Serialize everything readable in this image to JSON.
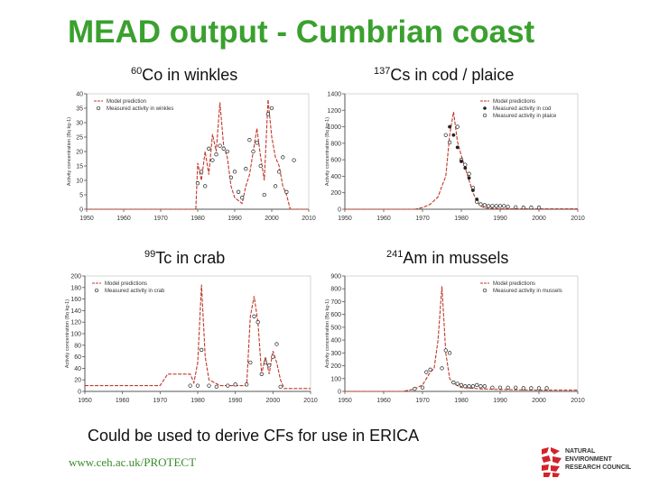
{
  "title": "MEAD output - Cumbrian coast",
  "caption": "Could be used to derive CFs for use in ERICA",
  "footer_url": "www.ceh.ac.uk/PROTECT",
  "logo": {
    "name": "NATURAL ENVIRONMENT RESEARCH COUNCIL",
    "lines": [
      "NATURAL",
      "ENVIRONMENT",
      "RESEARCH COUNCIL"
    ],
    "color": "#d2232a"
  },
  "colors": {
    "title": "#3aa02e",
    "model_line": "#c0392b",
    "axes": "#555555"
  },
  "panels": [
    {
      "id": "co60",
      "isotope_mass": "60",
      "title_rest": "Co in winkles"
    },
    {
      "id": "cs137",
      "isotope_mass": "137",
      "title_rest": "Cs in cod / plaice"
    },
    {
      "id": "tc99",
      "isotope_mass": "99",
      "title_rest": "Tc in crab"
    },
    {
      "id": "am241",
      "isotope_mass": "241",
      "title_rest": "Am in mussels"
    }
  ],
  "chart_data": [
    {
      "id": "co60",
      "type": "line",
      "xlim": [
        1950,
        2010
      ],
      "ylim": [
        0,
        40
      ],
      "xticks": [
        1950,
        1960,
        1970,
        1980,
        1990,
        2000,
        2010
      ],
      "yticks": [
        0,
        5,
        10,
        15,
        20,
        25,
        30,
        35,
        40
      ],
      "ylabel": "Activity concentration (Bq kg-1)",
      "legend": [
        "Model prediction",
        "Measured activity in winkles"
      ],
      "model": [
        [
          1950,
          0
        ],
        [
          1979.5,
          0
        ],
        [
          1980,
          16
        ],
        [
          1981,
          10
        ],
        [
          1982,
          20
        ],
        [
          1983,
          12
        ],
        [
          1984,
          26
        ],
        [
          1985,
          20
        ],
        [
          1986,
          37
        ],
        [
          1987,
          22
        ],
        [
          1988,
          18
        ],
        [
          1989,
          8
        ],
        [
          1990,
          4
        ],
        [
          1991,
          3
        ],
        [
          1992,
          2
        ],
        [
          1993,
          8
        ],
        [
          1994,
          12
        ],
        [
          1995,
          20
        ],
        [
          1996,
          28
        ],
        [
          1997,
          18
        ],
        [
          1998,
          10
        ],
        [
          1999,
          38
        ],
        [
          2000,
          25
        ],
        [
          2001,
          18
        ],
        [
          2002,
          15
        ],
        [
          2003,
          8
        ],
        [
          2004,
          5
        ],
        [
          2005,
          0
        ],
        [
          2010,
          0
        ]
      ],
      "measured": [
        [
          1980,
          9
        ],
        [
          1981,
          13
        ],
        [
          1982,
          8
        ],
        [
          1983,
          21
        ],
        [
          1984,
          17
        ],
        [
          1985,
          19
        ],
        [
          1986,
          22
        ],
        [
          1987,
          21
        ],
        [
          1988,
          20
        ],
        [
          1989,
          11
        ],
        [
          1990,
          13
        ],
        [
          1991,
          6
        ],
        [
          1992,
          4
        ],
        [
          1993,
          14
        ],
        [
          1994,
          24
        ],
        [
          1995,
          20
        ],
        [
          1996,
          23
        ],
        [
          1997,
          15
        ],
        [
          1998,
          5
        ],
        [
          1999,
          33
        ],
        [
          2000,
          35
        ],
        [
          2001,
          8
        ],
        [
          2002,
          13
        ],
        [
          2003,
          18
        ],
        [
          2004,
          6
        ],
        [
          2006,
          17
        ]
      ]
    },
    {
      "id": "cs137",
      "type": "line",
      "xlim": [
        1950,
        2010
      ],
      "ylim": [
        0,
        1400
      ],
      "xticks": [
        1950,
        1960,
        1970,
        1980,
        1990,
        2000,
        2010
      ],
      "yticks": [
        0,
        200,
        400,
        600,
        800,
        1000,
        1200,
        1400
      ],
      "ylabel": "Activity concentration (Bq kg-1)",
      "legend": [
        "Model predictions",
        "Measured activity in cod",
        "Measured activity in plaice"
      ],
      "model": [
        [
          1950,
          0
        ],
        [
          1968,
          0
        ],
        [
          1970,
          20
        ],
        [
          1972,
          60
        ],
        [
          1974,
          150
        ],
        [
          1975,
          280
        ],
        [
          1976,
          400
        ],
        [
          1977,
          900
        ],
        [
          1978,
          1180
        ],
        [
          1979,
          820
        ],
        [
          1980,
          650
        ],
        [
          1981,
          500
        ],
        [
          1982,
          350
        ],
        [
          1983,
          200
        ],
        [
          1984,
          100
        ],
        [
          1985,
          40
        ],
        [
          1986,
          15
        ],
        [
          1990,
          5
        ],
        [
          2010,
          5
        ]
      ],
      "measured_cod": [
        [
          1977,
          1000
        ],
        [
          1978,
          900
        ],
        [
          1979,
          750
        ],
        [
          1980,
          580
        ],
        [
          1981,
          500
        ],
        [
          1982,
          380
        ],
        [
          1983,
          230
        ],
        [
          1984,
          120
        ]
      ],
      "measured_plaice": [
        [
          1976,
          900
        ],
        [
          1977,
          810
        ],
        [
          1979,
          1000
        ],
        [
          1980,
          600
        ],
        [
          1981,
          540
        ],
        [
          1982,
          430
        ],
        [
          1983,
          260
        ],
        [
          1984,
          90
        ],
        [
          1985,
          60
        ],
        [
          1986,
          50
        ],
        [
          1987,
          40
        ],
        [
          1988,
          40
        ],
        [
          1989,
          40
        ],
        [
          1990,
          40
        ],
        [
          1991,
          40
        ],
        [
          1992,
          30
        ],
        [
          1994,
          25
        ],
        [
          1996,
          20
        ],
        [
          1998,
          20
        ],
        [
          2000,
          20
        ]
      ]
    },
    {
      "id": "tc99",
      "type": "line",
      "xlim": [
        1950,
        2010
      ],
      "ylim": [
        0,
        200
      ],
      "xticks": [
        1950,
        1960,
        1970,
        1980,
        1990,
        2000,
        2010
      ],
      "yticks": [
        0,
        20,
        40,
        60,
        80,
        100,
        120,
        140,
        160,
        180,
        200
      ],
      "ylabel": "Activity concentration (Bq kg-1)",
      "legend": [
        "Model predictions",
        "Measured activity in crab"
      ],
      "model": [
        [
          1950,
          10
        ],
        [
          1970,
          10
        ],
        [
          1972,
          30
        ],
        [
          1978,
          30
        ],
        [
          1979,
          15
        ],
        [
          1980,
          50
        ],
        [
          1981,
          185
        ],
        [
          1982,
          60
        ],
        [
          1983,
          20
        ],
        [
          1986,
          10
        ],
        [
          1993,
          10
        ],
        [
          1994,
          130
        ],
        [
          1995,
          165
        ],
        [
          1996,
          120
        ],
        [
          1997,
          30
        ],
        [
          1998,
          60
        ],
        [
          1999,
          30
        ],
        [
          2000,
          70
        ],
        [
          2001,
          50
        ],
        [
          2002,
          20
        ],
        [
          2003,
          5
        ],
        [
          2010,
          5
        ]
      ],
      "measured": [
        [
          1978,
          10
        ],
        [
          1980,
          10
        ],
        [
          1981,
          72
        ],
        [
          1983,
          10
        ],
        [
          1985,
          8
        ],
        [
          1988,
          10
        ],
        [
          1990,
          12
        ],
        [
          1993,
          12
        ],
        [
          1994,
          50
        ],
        [
          1995,
          130
        ],
        [
          1996,
          120
        ],
        [
          1997,
          30
        ],
        [
          1998,
          50
        ],
        [
          1999,
          45
        ],
        [
          2000,
          60
        ],
        [
          2001,
          82
        ],
        [
          2002,
          8
        ]
      ]
    },
    {
      "id": "am241",
      "type": "line",
      "xlim": [
        1950,
        2010
      ],
      "ylim": [
        0,
        900
      ],
      "xticks": [
        1950,
        1960,
        1970,
        1980,
        1990,
        2000,
        2010
      ],
      "yticks": [
        0,
        100,
        200,
        300,
        400,
        500,
        600,
        700,
        800,
        900
      ],
      "ylabel": "Activity concentration (Bq kg-1)",
      "legend": [
        "Model predictions",
        "Measured activity in mussels"
      ],
      "model": [
        [
          1950,
          0
        ],
        [
          1965,
          0
        ],
        [
          1968,
          20
        ],
        [
          1970,
          50
        ],
        [
          1971,
          100
        ],
        [
          1972,
          150
        ],
        [
          1973,
          180
        ],
        [
          1974,
          400
        ],
        [
          1975,
          820
        ],
        [
          1976,
          300
        ],
        [
          1977,
          100
        ],
        [
          1978,
          60
        ],
        [
          1980,
          30
        ],
        [
          1985,
          20
        ],
        [
          1990,
          15
        ],
        [
          2000,
          10
        ],
        [
          2010,
          10
        ]
      ],
      "measured": [
        [
          1968,
          20
        ],
        [
          1970,
          30
        ],
        [
          1971,
          150
        ],
        [
          1972,
          170
        ],
        [
          1975,
          180
        ],
        [
          1976,
          320
        ],
        [
          1977,
          300
        ],
        [
          1978,
          70
        ],
        [
          1979,
          60
        ],
        [
          1980,
          50
        ],
        [
          1981,
          40
        ],
        [
          1982,
          40
        ],
        [
          1983,
          40
        ],
        [
          1984,
          50
        ],
        [
          1985,
          40
        ],
        [
          1986,
          40
        ],
        [
          1988,
          30
        ],
        [
          1990,
          30
        ],
        [
          1992,
          30
        ],
        [
          1994,
          30
        ],
        [
          1996,
          25
        ],
        [
          1998,
          25
        ],
        [
          2000,
          25
        ],
        [
          2002,
          25
        ]
      ]
    }
  ]
}
